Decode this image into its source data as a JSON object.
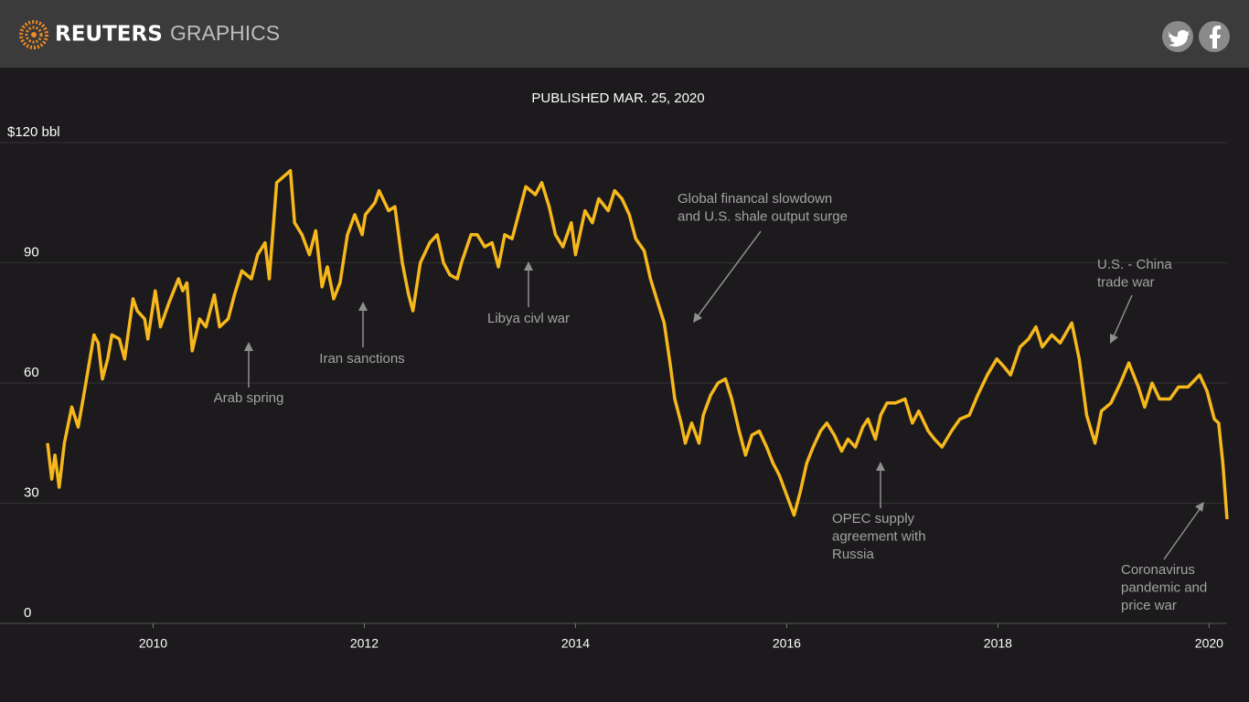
{
  "header": {
    "brand": "REUTERS",
    "section": "GRAPHICS"
  },
  "chart_data": {
    "type": "line",
    "subtitle": "PUBLISHED MAR. 25, 2020",
    "color": "#f6b81c",
    "grid": true,
    "xlim": [
      2008.55,
      2020.17
    ],
    "xticks": [
      2010,
      2012,
      2014,
      2016,
      2018,
      2020
    ],
    "ylim": [
      0,
      120
    ],
    "yticks": [
      0,
      30,
      60,
      90,
      {
        "value": 120,
        "label": "$120 bbl"
      }
    ],
    "x": [
      2009.0,
      2009.04,
      2009.07,
      2009.11,
      2009.16,
      2009.23,
      2009.29,
      2009.35,
      2009.44,
      2009.48,
      2009.52,
      2009.57,
      2009.61,
      2009.68,
      2009.73,
      2009.81,
      2009.85,
      2009.92,
      2009.95,
      2010.02,
      2010.07,
      2010.15,
      2010.24,
      2010.28,
      2010.32,
      2010.37,
      2010.44,
      2010.5,
      2010.58,
      2010.63,
      2010.71,
      2010.77,
      2010.84,
      2010.93,
      2010.99,
      2011.06,
      2011.1,
      2011.17,
      2011.3,
      2011.34,
      2011.41,
      2011.48,
      2011.54,
      2011.6,
      2011.65,
      2011.71,
      2011.77,
      2011.84,
      2011.91,
      2011.98,
      2012.01,
      2012.1,
      2012.14,
      2012.23,
      2012.29,
      2012.36,
      2012.42,
      2012.46,
      2012.53,
      2012.62,
      2012.69,
      2012.75,
      2012.81,
      2012.88,
      2012.92,
      2013.01,
      2013.07,
      2013.14,
      2013.21,
      2013.27,
      2013.33,
      2013.4,
      2013.47,
      2013.53,
      2013.62,
      2013.68,
      2013.75,
      2013.81,
      2013.88,
      2013.96,
      2014.0,
      2014.09,
      2014.16,
      2014.22,
      2014.31,
      2014.37,
      2014.44,
      2014.51,
      2014.57,
      2014.65,
      2014.71,
      2014.78,
      2014.84,
      2014.9,
      2014.94,
      2015.0,
      2015.04,
      2015.1,
      2015.17,
      2015.21,
      2015.28,
      2015.35,
      2015.42,
      2015.48,
      2015.55,
      2015.61,
      2015.67,
      2015.74,
      2015.81,
      2015.87,
      2015.93,
      2016.0,
      2016.07,
      2016.13,
      2016.19,
      2016.25,
      2016.32,
      2016.38,
      2016.45,
      2016.52,
      2016.58,
      2016.65,
      2016.72,
      2016.77,
      2016.84,
      2016.89,
      2016.95,
      2017.03,
      2017.12,
      2017.19,
      2017.25,
      2017.34,
      2017.4,
      2017.47,
      2017.56,
      2017.64,
      2017.73,
      2017.81,
      2017.9,
      2017.99,
      2018.06,
      2018.12,
      2018.21,
      2018.29,
      2018.36,
      2018.42,
      2018.51,
      2018.59,
      2018.7,
      2018.77,
      2018.84,
      2018.92,
      2018.98,
      2019.07,
      2019.16,
      2019.24,
      2019.33,
      2019.39,
      2019.46,
      2019.53,
      2019.63,
      2019.71,
      2019.8,
      2019.91,
      2019.98,
      2020.05,
      2020.09,
      2020.13,
      2020.17
    ],
    "values": [
      45,
      36,
      42,
      34,
      45,
      54,
      49,
      58,
      72,
      70,
      61,
      66,
      72,
      71,
      66,
      81,
      78,
      76,
      71,
      83,
      74,
      80,
      86,
      83,
      85,
      68,
      76,
      74,
      82,
      74,
      76,
      82,
      88,
      86,
      92,
      95,
      86,
      110,
      113,
      100,
      97,
      92,
      98,
      84,
      89,
      81,
      85,
      97,
      102,
      97,
      102,
      105,
      108,
      103,
      104,
      90,
      82,
      78,
      90,
      95,
      97,
      90,
      87,
      86,
      90,
      97,
      97,
      94,
      95,
      89,
      97,
      96,
      103,
      109,
      107,
      110,
      104,
      97,
      94,
      100,
      92,
      103,
      100,
      106,
      103,
      108,
      106,
      102,
      96,
      93,
      86,
      80,
      75,
      64,
      56,
      50,
      45,
      50,
      45,
      52,
      57,
      60,
      61,
      56,
      48,
      42,
      47,
      48,
      44,
      40,
      37,
      32,
      27,
      33,
      40,
      44,
      48,
      50,
      47,
      43,
      46,
      44,
      49,
      51,
      46,
      52,
      55,
      55,
      56,
      50,
      53,
      48,
      46,
      44,
      48,
      51,
      52,
      57,
      62,
      66,
      64,
      62,
      69,
      71,
      74,
      69,
      72,
      70,
      75,
      66,
      52,
      45,
      53,
      55,
      60,
      65,
      59,
      54,
      60,
      56,
      56,
      59,
      59,
      62,
      58,
      51,
      50,
      40,
      26
    ],
    "annotations": [
      [
        "Arab spring"
      ],
      [
        "Iran sanctions"
      ],
      [
        "Libya civl war"
      ],
      [
        "Global financal slowdown",
        "and U.S. shale output surge"
      ],
      [
        "OPEC supply",
        "agreement with",
        "Russia"
      ],
      [
        "U.S. - China",
        "trade war"
      ],
      [
        "Coronavirus",
        "pandemic and",
        "price war"
      ]
    ]
  }
}
